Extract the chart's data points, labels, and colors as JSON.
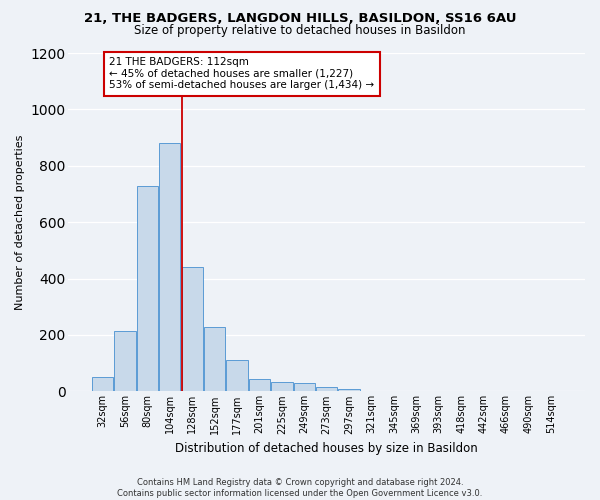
{
  "title1": "21, THE BADGERS, LANGDON HILLS, BASILDON, SS16 6AU",
  "title2": "Size of property relative to detached houses in Basildon",
  "xlabel": "Distribution of detached houses by size in Basildon",
  "ylabel": "Number of detached properties",
  "bar_labels": [
    "32sqm",
    "56sqm",
    "80sqm",
    "104sqm",
    "128sqm",
    "152sqm",
    "177sqm",
    "201sqm",
    "225sqm",
    "249sqm",
    "273sqm",
    "297sqm",
    "321sqm",
    "345sqm",
    "369sqm",
    "393sqm",
    "418sqm",
    "442sqm",
    "466sqm",
    "490sqm",
    "514sqm"
  ],
  "bar_values": [
    50,
    215,
    730,
    880,
    440,
    230,
    110,
    45,
    35,
    30,
    15,
    10,
    0,
    0,
    0,
    0,
    0,
    0,
    0,
    0,
    0
  ],
  "bar_color": "#c8d9ea",
  "bar_edgecolor": "#5b9bd5",
  "vline_color": "#cc0000",
  "annotation_text": "21 THE BADGERS: 112sqm\n← 45% of detached houses are smaller (1,227)\n53% of semi-detached houses are larger (1,434) →",
  "annotation_box_color": "#ffffff",
  "annotation_box_edgecolor": "#cc0000",
  "ylim": [
    0,
    1200
  ],
  "yticks": [
    0,
    200,
    400,
    600,
    800,
    1000,
    1200
  ],
  "footnote": "Contains HM Land Registry data © Crown copyright and database right 2024.\nContains public sector information licensed under the Open Government Licence v3.0.",
  "background_color": "#eef2f7",
  "plot_bg_color": "#eef2f7",
  "grid_color": "#ffffff",
  "title1_fontsize": 9.5,
  "title2_fontsize": 8.5,
  "ylabel_fontsize": 8.0,
  "xlabel_fontsize": 8.5,
  "tick_fontsize": 7.0,
  "annot_fontsize": 7.5,
  "footnote_fontsize": 6.0
}
